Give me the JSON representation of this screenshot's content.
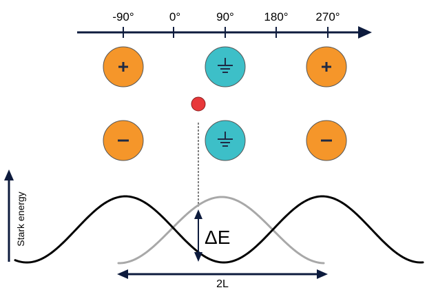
{
  "axis": {
    "ticks": [
      "-90°",
      "0°",
      "90°",
      "180°",
      "270°"
    ]
  },
  "electrodes": {
    "top_row": [
      {
        "symbol": "+",
        "kind": "positive-electrode",
        "color": "#f5962a"
      },
      {
        "symbol": "ground",
        "kind": "ground-electrode",
        "color": "#3dbfc8"
      },
      {
        "symbol": "+",
        "kind": "positive-electrode",
        "color": "#f5962a"
      }
    ],
    "bottom_row": [
      {
        "symbol": "−",
        "kind": "negative-electrode",
        "color": "#f5962a"
      },
      {
        "symbol": "ground",
        "kind": "ground-electrode",
        "color": "#3dbfc8"
      },
      {
        "symbol": "−",
        "kind": "negative-electrode",
        "color": "#f5962a"
      }
    ]
  },
  "particle": {
    "color": "#e8383a"
  },
  "energy": {
    "y_label": "Stark energy",
    "delta_label": "ΔE",
    "span_label": "2L",
    "curve_colors": {
      "main": "#000000",
      "shifted": "#a8a8a8"
    }
  }
}
